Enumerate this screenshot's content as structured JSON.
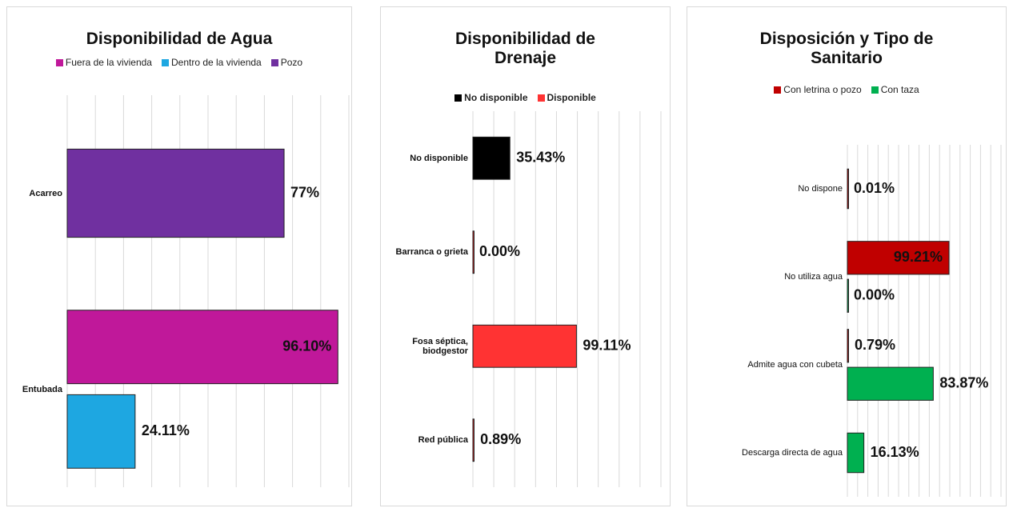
{
  "chart_data": [
    {
      "type": "bar",
      "orientation": "horizontal",
      "title": "Disponibilidad de Agua",
      "categories": [
        "Acarreo",
        "Entubada"
      ],
      "series": [
        {
          "name": "Fuera de la vivienda",
          "color": "#c0189a",
          "values": [
            null,
            96.1
          ],
          "value_labels": [
            null,
            "96.10%"
          ]
        },
        {
          "name": "Dentro de la vivienda",
          "color": "#1ea7e1",
          "values": [
            null,
            24.11
          ],
          "value_labels": [
            null,
            "24.11%"
          ]
        },
        {
          "name": "Pozo",
          "color": "#7030a0",
          "values": [
            77,
            null
          ],
          "value_labels": [
            "77%",
            null
          ]
        }
      ],
      "xlim": [
        0,
        100
      ],
      "xticks": [
        0,
        10,
        20,
        30,
        40,
        50,
        60,
        70,
        80,
        90,
        100
      ],
      "grid": true
    },
    {
      "type": "bar",
      "orientation": "horizontal",
      "title": "Disponibilidad de Drenaje",
      "categories": [
        "No disponible",
        "Barranca o grieta",
        "Fosa séptica, biodgestor",
        "Red pública"
      ],
      "series": [
        {
          "name": "No disponible",
          "color": "#000000",
          "values": [
            35.43,
            null,
            null,
            null
          ],
          "value_labels": [
            "35.43%",
            null,
            null,
            null
          ]
        },
        {
          "name": "Disponible",
          "color": "#ff3333",
          "values": [
            null,
            0.0,
            99.11,
            0.89
          ],
          "value_labels": [
            null,
            "0.00%",
            "99.11%",
            "0.89%"
          ]
        }
      ],
      "xlim": [
        0,
        180
      ],
      "xticks": [
        0,
        20,
        40,
        60,
        80,
        100,
        120,
        140,
        160,
        180
      ],
      "grid": true
    },
    {
      "type": "bar",
      "orientation": "horizontal",
      "title": "Disposición y Tipo de Sanitario",
      "categories": [
        "No dispone",
        "No utiliza agua",
        "Admite agua con cubeta",
        "Descarga directa de agua"
      ],
      "series": [
        {
          "name": "Con letrina o pozo",
          "color": "#c00000",
          "values": [
            0.01,
            99.21,
            0.79,
            null
          ],
          "value_labels": [
            "0.01%",
            "99.21%",
            "0.79%",
            null
          ]
        },
        {
          "name": "Con taza",
          "color": "#00b050",
          "values": [
            null,
            0.0,
            83.87,
            16.13
          ],
          "value_labels": [
            null,
            "0.00%",
            "83.87%",
            "16.13%"
          ]
        }
      ],
      "xlim": [
        0,
        150
      ],
      "xticks": [
        0,
        10,
        20,
        30,
        40,
        50,
        60,
        70,
        80,
        90,
        100,
        110,
        120,
        130,
        140,
        150
      ],
      "grid": true
    }
  ]
}
